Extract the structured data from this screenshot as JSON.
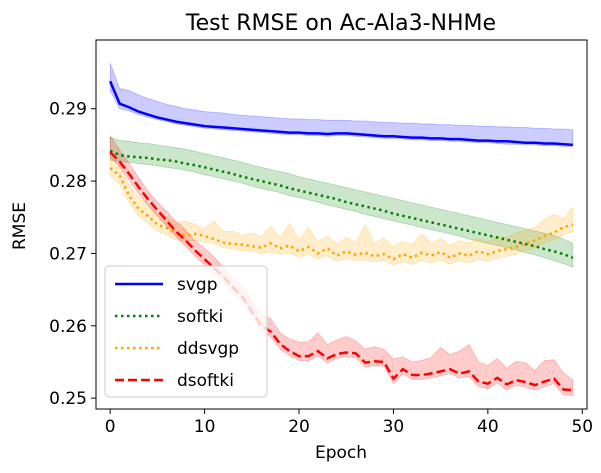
{
  "chart_data": {
    "type": "line",
    "title": "Test RMSE on Ac-Ala3-NHMe",
    "xlabel": "Epoch",
    "ylabel": "RMSE",
    "xlim": [
      -1.5,
      50.5
    ],
    "ylim": [
      0.2485,
      0.2995
    ],
    "x_ticks": [
      0,
      10,
      20,
      30,
      40,
      50
    ],
    "x_tick_labels": [
      "0",
      "10",
      "20",
      "30",
      "40",
      "50"
    ],
    "y_ticks": [
      0.25,
      0.26,
      0.27,
      0.28,
      0.29
    ],
    "y_tick_labels": [
      "0.25",
      "0.26",
      "0.27",
      "0.28",
      "0.29"
    ],
    "grid": false,
    "legend_position": "lower-left",
    "x": [
      0,
      1,
      2,
      3,
      4,
      5,
      6,
      7,
      8,
      9,
      10,
      11,
      12,
      13,
      14,
      15,
      16,
      17,
      18,
      19,
      20,
      21,
      22,
      23,
      24,
      25,
      26,
      27,
      28,
      29,
      30,
      31,
      32,
      33,
      34,
      35,
      36,
      37,
      38,
      39,
      40,
      41,
      42,
      43,
      44,
      45,
      46,
      47,
      48,
      49
    ],
    "series": [
      {
        "name": "svgp",
        "color": "#0000ff",
        "style": "solid",
        "values": [
          0.2938,
          0.2907,
          0.2902,
          0.2896,
          0.2892,
          0.2888,
          0.2885,
          0.2882,
          0.288,
          0.2878,
          0.2876,
          0.2875,
          0.2874,
          0.2873,
          0.2872,
          0.2871,
          0.287,
          0.2869,
          0.2868,
          0.2867,
          0.2867,
          0.2866,
          0.2866,
          0.2865,
          0.2866,
          0.2866,
          0.2865,
          0.2864,
          0.2863,
          0.2862,
          0.2862,
          0.2861,
          0.286,
          0.286,
          0.2859,
          0.2859,
          0.2858,
          0.2858,
          0.2857,
          0.2856,
          0.2856,
          0.2855,
          0.2855,
          0.2854,
          0.2853,
          0.2853,
          0.2852,
          0.2852,
          0.2851,
          0.285
        ],
        "band_upper": [
          0.2963,
          0.2928,
          0.2925,
          0.2919,
          0.2914,
          0.291,
          0.2906,
          0.2903,
          0.29,
          0.2898,
          0.2896,
          0.2895,
          0.2894,
          0.2892,
          0.2891,
          0.289,
          0.2889,
          0.2888,
          0.2887,
          0.2886,
          0.2886,
          0.2885,
          0.2885,
          0.2884,
          0.2884,
          0.2884,
          0.2883,
          0.2883,
          0.2882,
          0.2881,
          0.2881,
          0.288,
          0.288,
          0.2879,
          0.2879,
          0.2878,
          0.2878,
          0.2877,
          0.2877,
          0.2876,
          0.2876,
          0.2875,
          0.2875,
          0.2874,
          0.2874,
          0.2873,
          0.2873,
          0.2872,
          0.2872,
          0.2871
        ],
        "band_lower": [
          0.2925,
          0.29,
          0.2897,
          0.2892,
          0.2888,
          0.2885,
          0.2882,
          0.2879,
          0.2877,
          0.2875,
          0.2873,
          0.2872,
          0.2871,
          0.287,
          0.2869,
          0.2868,
          0.2867,
          0.2866,
          0.2865,
          0.2864,
          0.2864,
          0.2863,
          0.2863,
          0.2862,
          0.2863,
          0.2863,
          0.2862,
          0.2861,
          0.286,
          0.2859,
          0.2859,
          0.2858,
          0.2857,
          0.2857,
          0.2856,
          0.2856,
          0.2855,
          0.2855,
          0.2854,
          0.2853,
          0.2853,
          0.2852,
          0.2851,
          0.2851,
          0.285,
          0.285,
          0.2849,
          0.2849,
          0.2848,
          0.2848
        ]
      },
      {
        "name": "softki",
        "color": "#008000",
        "style": "dotted",
        "values": [
          0.2842,
          0.2836,
          0.2834,
          0.2833,
          0.2832,
          0.283,
          0.2829,
          0.2827,
          0.2824,
          0.2822,
          0.2819,
          0.2816,
          0.2813,
          0.281,
          0.2806,
          0.2803,
          0.28,
          0.2797,
          0.2794,
          0.279,
          0.2787,
          0.2784,
          0.2781,
          0.2778,
          0.2775,
          0.2771,
          0.2768,
          0.2765,
          0.2762,
          0.2759,
          0.2755,
          0.2752,
          0.2749,
          0.2746,
          0.2743,
          0.274,
          0.2737,
          0.2734,
          0.2731,
          0.2728,
          0.2725,
          0.2722,
          0.2719,
          0.2716,
          0.2713,
          0.271,
          0.2706,
          0.2703,
          0.2699,
          0.2694
        ],
        "band_upper": [
          0.2861,
          0.2856,
          0.2855,
          0.2853,
          0.2852,
          0.285,
          0.2848,
          0.2846,
          0.2844,
          0.2841,
          0.2838,
          0.2835,
          0.2832,
          0.2829,
          0.2826,
          0.2822,
          0.2819,
          0.2816,
          0.2813,
          0.281,
          0.2806,
          0.2803,
          0.28,
          0.2797,
          0.2794,
          0.2791,
          0.2788,
          0.2785,
          0.2782,
          0.2779,
          0.2776,
          0.2773,
          0.277,
          0.2767,
          0.2764,
          0.2761,
          0.2758,
          0.2755,
          0.2752,
          0.2749,
          0.2746,
          0.2743,
          0.274,
          0.2737,
          0.2734,
          0.2731,
          0.2728,
          0.2725,
          0.272,
          0.2714
        ],
        "band_lower": [
          0.2829,
          0.2827,
          0.2826,
          0.2824,
          0.2823,
          0.2821,
          0.2819,
          0.2817,
          0.2815,
          0.2812,
          0.2809,
          0.2806,
          0.2803,
          0.28,
          0.2797,
          0.2793,
          0.279,
          0.2787,
          0.2784,
          0.278,
          0.2777,
          0.2774,
          0.2771,
          0.2767,
          0.2764,
          0.2761,
          0.2758,
          0.2754,
          0.2751,
          0.2748,
          0.2745,
          0.2742,
          0.2739,
          0.2736,
          0.2733,
          0.273,
          0.2727,
          0.2724,
          0.272,
          0.2717,
          0.2714,
          0.2711,
          0.2708,
          0.2705,
          0.2701,
          0.2698,
          0.2694,
          0.269,
          0.2686,
          0.2681
        ]
      },
      {
        "name": "ddsvgp",
        "color": "#ffa500",
        "style": "dotted",
        "values": [
          0.2818,
          0.2808,
          0.278,
          0.2762,
          0.2752,
          0.274,
          0.2735,
          0.2728,
          0.2725,
          0.2727,
          0.2724,
          0.272,
          0.2715,
          0.2713,
          0.2712,
          0.271,
          0.2708,
          0.2714,
          0.2707,
          0.2711,
          0.2703,
          0.2709,
          0.27,
          0.2707,
          0.2697,
          0.2703,
          0.2698,
          0.2701,
          0.2696,
          0.2699,
          0.2692,
          0.2699,
          0.2694,
          0.2701,
          0.2697,
          0.2702,
          0.2694,
          0.27,
          0.2697,
          0.2703,
          0.2699,
          0.2703,
          0.2706,
          0.2709,
          0.2714,
          0.2718,
          0.2724,
          0.2729,
          0.2736,
          0.274
        ],
        "band_upper": [
          0.2832,
          0.2822,
          0.2795,
          0.2778,
          0.2768,
          0.2755,
          0.275,
          0.2742,
          0.2745,
          0.274,
          0.2734,
          0.2745,
          0.273,
          0.2731,
          0.2725,
          0.2728,
          0.2723,
          0.2738,
          0.2722,
          0.2742,
          0.2718,
          0.2736,
          0.2716,
          0.2724,
          0.2713,
          0.2722,
          0.2715,
          0.274,
          0.2714,
          0.2721,
          0.2709,
          0.2717,
          0.2712,
          0.2727,
          0.2714,
          0.2721,
          0.2711,
          0.2718,
          0.2714,
          0.2722,
          0.2716,
          0.2724,
          0.2722,
          0.2728,
          0.2732,
          0.2736,
          0.2747,
          0.2754,
          0.2748,
          0.2764
        ],
        "band_lower": [
          0.2807,
          0.2796,
          0.277,
          0.2752,
          0.2742,
          0.2731,
          0.2726,
          0.2719,
          0.2717,
          0.2718,
          0.2716,
          0.2713,
          0.2708,
          0.2706,
          0.2704,
          0.2703,
          0.27,
          0.2702,
          0.2699,
          0.2701,
          0.2695,
          0.2699,
          0.2692,
          0.2697,
          0.2689,
          0.2693,
          0.269,
          0.2691,
          0.2688,
          0.269,
          0.2684,
          0.2688,
          0.2685,
          0.269,
          0.2687,
          0.2691,
          0.2685,
          0.269,
          0.2687,
          0.2692,
          0.2689,
          0.2693,
          0.2696,
          0.2699,
          0.2704,
          0.2708,
          0.2714,
          0.2719,
          0.2726,
          0.273
        ]
      },
      {
        "name": "dsoftki",
        "color": "#ff0000",
        "style": "dashed",
        "values": [
          0.284,
          0.2827,
          0.281,
          0.2792,
          0.2775,
          0.276,
          0.2745,
          0.273,
          0.2718,
          0.2704,
          0.2692,
          0.268,
          0.2668,
          0.2653,
          0.264,
          0.262,
          0.26,
          0.2592,
          0.2575,
          0.2565,
          0.2558,
          0.2558,
          0.2565,
          0.2555,
          0.2561,
          0.2563,
          0.2562,
          0.2549,
          0.2551,
          0.255,
          0.2527,
          0.254,
          0.2532,
          0.2532,
          0.2534,
          0.2537,
          0.254,
          0.2534,
          0.2537,
          0.2523,
          0.252,
          0.2528,
          0.2519,
          0.2525,
          0.2522,
          0.2518,
          0.2523,
          0.2527,
          0.2512,
          0.2511
        ],
        "band_upper": [
          0.2862,
          0.2843,
          0.2825,
          0.2805,
          0.2786,
          0.2771,
          0.2758,
          0.2744,
          0.2732,
          0.2717,
          0.2707,
          0.2695,
          0.2681,
          0.2665,
          0.2655,
          0.2635,
          0.2615,
          0.261,
          0.259,
          0.2582,
          0.2577,
          0.2578,
          0.259,
          0.2574,
          0.258,
          0.2585,
          0.2579,
          0.2568,
          0.2571,
          0.2567,
          0.2554,
          0.2557,
          0.255,
          0.2552,
          0.2556,
          0.257,
          0.256,
          0.2565,
          0.2574,
          0.255,
          0.2545,
          0.2555,
          0.2541,
          0.2551,
          0.2549,
          0.2538,
          0.2552,
          0.2553,
          0.2535,
          0.2525
        ],
        "band_lower": [
          0.2834,
          0.282,
          0.2802,
          0.2783,
          0.2767,
          0.2752,
          0.2738,
          0.2723,
          0.271,
          0.2696,
          0.2684,
          0.2672,
          0.266,
          0.2646,
          0.2633,
          0.2613,
          0.2593,
          0.2585,
          0.2568,
          0.2559,
          0.2552,
          0.2552,
          0.2558,
          0.2549,
          0.2555,
          0.2557,
          0.2556,
          0.2543,
          0.2545,
          0.2544,
          0.252,
          0.2534,
          0.2526,
          0.2526,
          0.2528,
          0.2531,
          0.2534,
          0.2528,
          0.253,
          0.2516,
          0.2513,
          0.2521,
          0.2511,
          0.2518,
          0.2515,
          0.2511,
          0.2516,
          0.252,
          0.2505,
          0.2504
        ]
      }
    ]
  }
}
